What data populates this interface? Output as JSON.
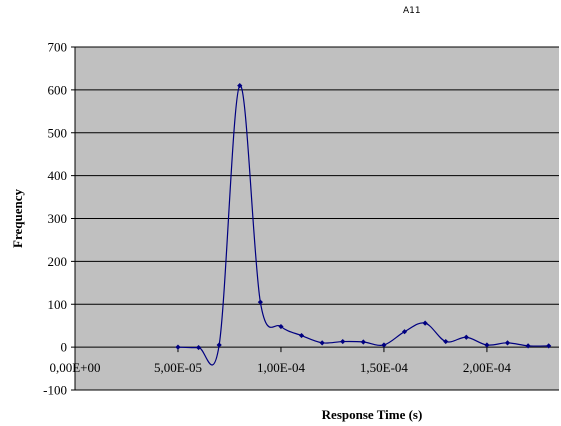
{
  "header_text": "A11",
  "chart_data": {
    "type": "line",
    "title": "",
    "xlabel": "Response Time (s)",
    "ylabel": "Frequency",
    "xlim": [
      0,
      0.000235
    ],
    "ylim": [
      -100,
      700
    ],
    "x_ticks": [
      0,
      5e-05,
      0.0001,
      0.00015,
      0.0002
    ],
    "x_tick_labels": [
      "0,00E+00",
      "5,00E-05",
      "1,00E-04",
      "1,50E-04",
      "2,00E-04"
    ],
    "y_ticks": [
      -100,
      0,
      100,
      200,
      300,
      400,
      500,
      600,
      700
    ],
    "y_tick_labels": [
      "-100",
      "0",
      "100",
      "200",
      "300",
      "400",
      "500",
      "600",
      "700"
    ],
    "grid": "horizontal",
    "plot_background": "#c0c0c0",
    "series": [
      {
        "color": "#000080",
        "smooth": true,
        "x": [
          5e-05,
          6e-05,
          7e-05,
          8e-05,
          9e-05,
          0.0001,
          0.00011,
          0.00012,
          0.00013,
          0.00014,
          0.00015,
          0.00016,
          0.00017,
          0.00018,
          0.00019,
          0.0002,
          0.00021,
          0.00022,
          0.00023
        ],
        "y": [
          0,
          -1,
          5,
          610,
          105,
          48,
          27,
          10,
          13,
          12,
          5,
          36,
          56,
          13,
          23,
          5,
          10,
          3,
          3
        ]
      }
    ]
  }
}
